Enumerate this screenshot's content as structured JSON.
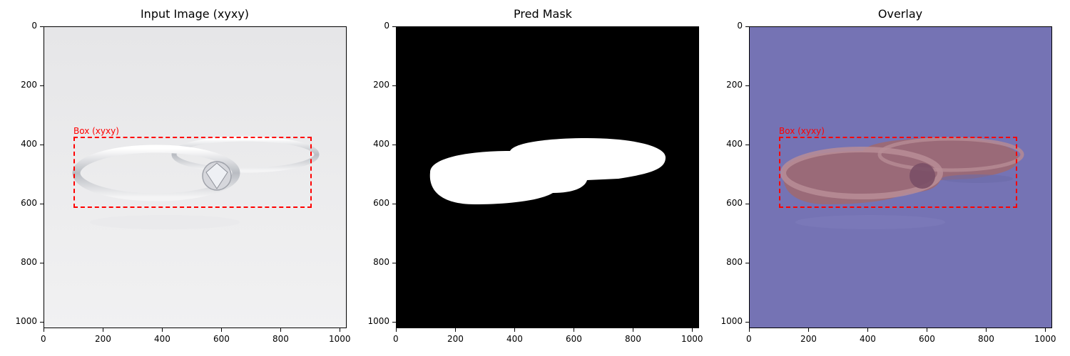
{
  "panels": [
    {
      "title": "Input Image (xyxy)"
    },
    {
      "title": "Pred Mask"
    },
    {
      "title": "Overlay"
    }
  ],
  "axes": {
    "x_ticks": [
      "0",
      "200",
      "400",
      "600",
      "800",
      "1000"
    ],
    "y_ticks": [
      "0",
      "200",
      "400",
      "600",
      "800",
      "1000"
    ],
    "x_range": [
      0,
      1024
    ],
    "y_range": [
      1024,
      0
    ]
  },
  "box": {
    "label": "Box (xyxy)",
    "xyxy": [
      103,
      375,
      905,
      612
    ],
    "color": "#ff0000"
  },
  "colors": {
    "input_background": "#e8e8ea",
    "mask_background": "#000000",
    "mask_foreground": "#ffffff",
    "overlay_background": "#7573b4",
    "overlay_object": "#9a6a78"
  }
}
